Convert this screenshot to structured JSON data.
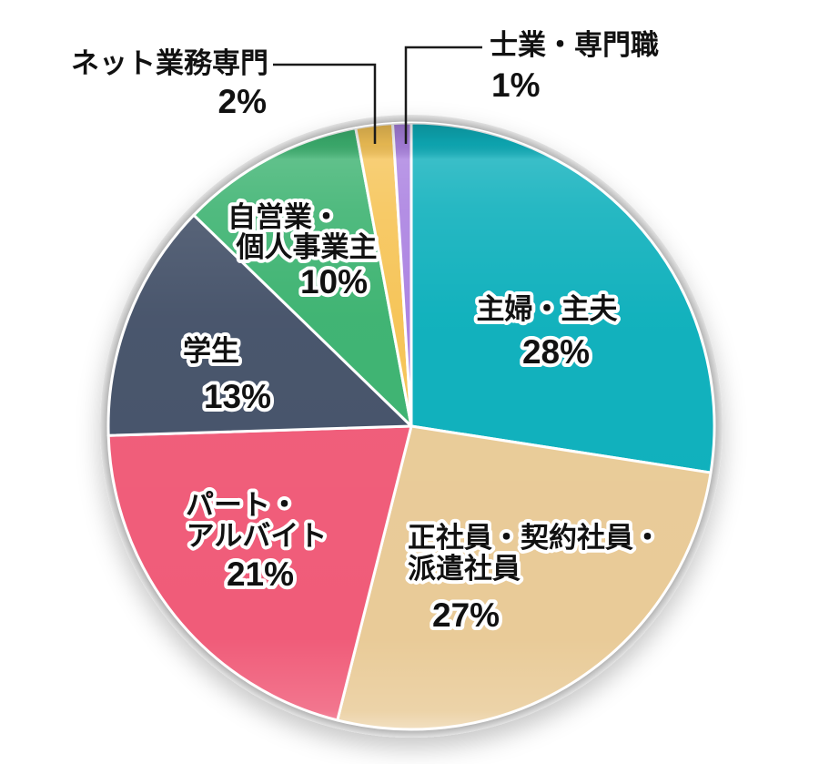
{
  "figure": {
    "background_color": "#ffffff",
    "outline_color": "#ffffff",
    "leader_line_color": "#1a1a1a"
  },
  "chart_data": {
    "type": "pie",
    "title": "",
    "unit": "%",
    "start_angle_deg": 0,
    "direction": "clockwise",
    "grid": false,
    "legend_position": "labels-on-slices",
    "segments": [
      {
        "label": "主婦・主夫",
        "label_lines": [
          "主婦・主夫"
        ],
        "pct_label": "28%",
        "value": 28,
        "color": "#0EB0BC",
        "label_placement": "inside"
      },
      {
        "label": "正社員・契約社員・派遣社員",
        "label_lines": [
          "正社員・契約社員・",
          "派遣社員"
        ],
        "pct_label": "27%",
        "value": 27,
        "color": "#E9CB98",
        "label_placement": "inside"
      },
      {
        "label": "パート・アルバイト",
        "label_lines": [
          "パート・",
          "アルバイト"
        ],
        "pct_label": "21%",
        "value": 21,
        "color": "#F05C79",
        "label_placement": "inside"
      },
      {
        "label": "学生",
        "label_lines": [
          "学生"
        ],
        "pct_label": "13%",
        "value": 13,
        "color": "#46536A",
        "label_placement": "inside"
      },
      {
        "label": "自営業・個人事業主",
        "label_lines": [
          "自営業・",
          "個人事業主"
        ],
        "pct_label": "10%",
        "value": 10,
        "color": "#3DB371",
        "label_placement": "inside"
      },
      {
        "label": "ネット業務専門",
        "label_lines": [
          "ネット業務専門"
        ],
        "pct_label": "2%",
        "value": 2,
        "color": "#F6C457",
        "label_placement": "outside-left-callout"
      },
      {
        "label": "士業・専門職",
        "label_lines": [
          "士業・専門職"
        ],
        "pct_label": "1%",
        "value": 1,
        "color": "#AB82E1",
        "label_placement": "outside-right-callout"
      }
    ]
  }
}
